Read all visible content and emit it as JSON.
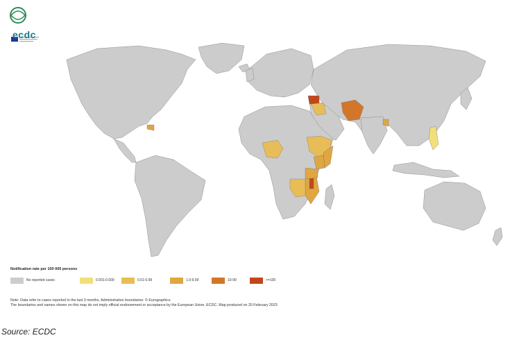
{
  "logo": {
    "text": "ecdc",
    "icon": "ecdc-globe-logo-icon"
  },
  "legend": {
    "title": "Notification rate per 100 000 persons",
    "items": [
      {
        "label": "No reported cases",
        "color": "#cccccc"
      },
      {
        "label": "0.001-0.009",
        "color": "#f1e07a"
      },
      {
        "label": "0.01-0.99",
        "color": "#e8bd57"
      },
      {
        "label": "1.0-9.99",
        "color": "#e0a640"
      },
      {
        "label": "10-99",
        "color": "#d2762a"
      },
      {
        "label": ">=100",
        "color": "#c3461b"
      }
    ]
  },
  "note": {
    "line1": "Note: Data refer to cases reported in the last 3 months. Administrative boundaries: © Eurographics",
    "line2": "The boundaries and names shown on this map do not imply official endorsement or acceptance by the European Union. ECDC. Map produced on 20 February 2023"
  },
  "source": "Source: ECDC"
}
